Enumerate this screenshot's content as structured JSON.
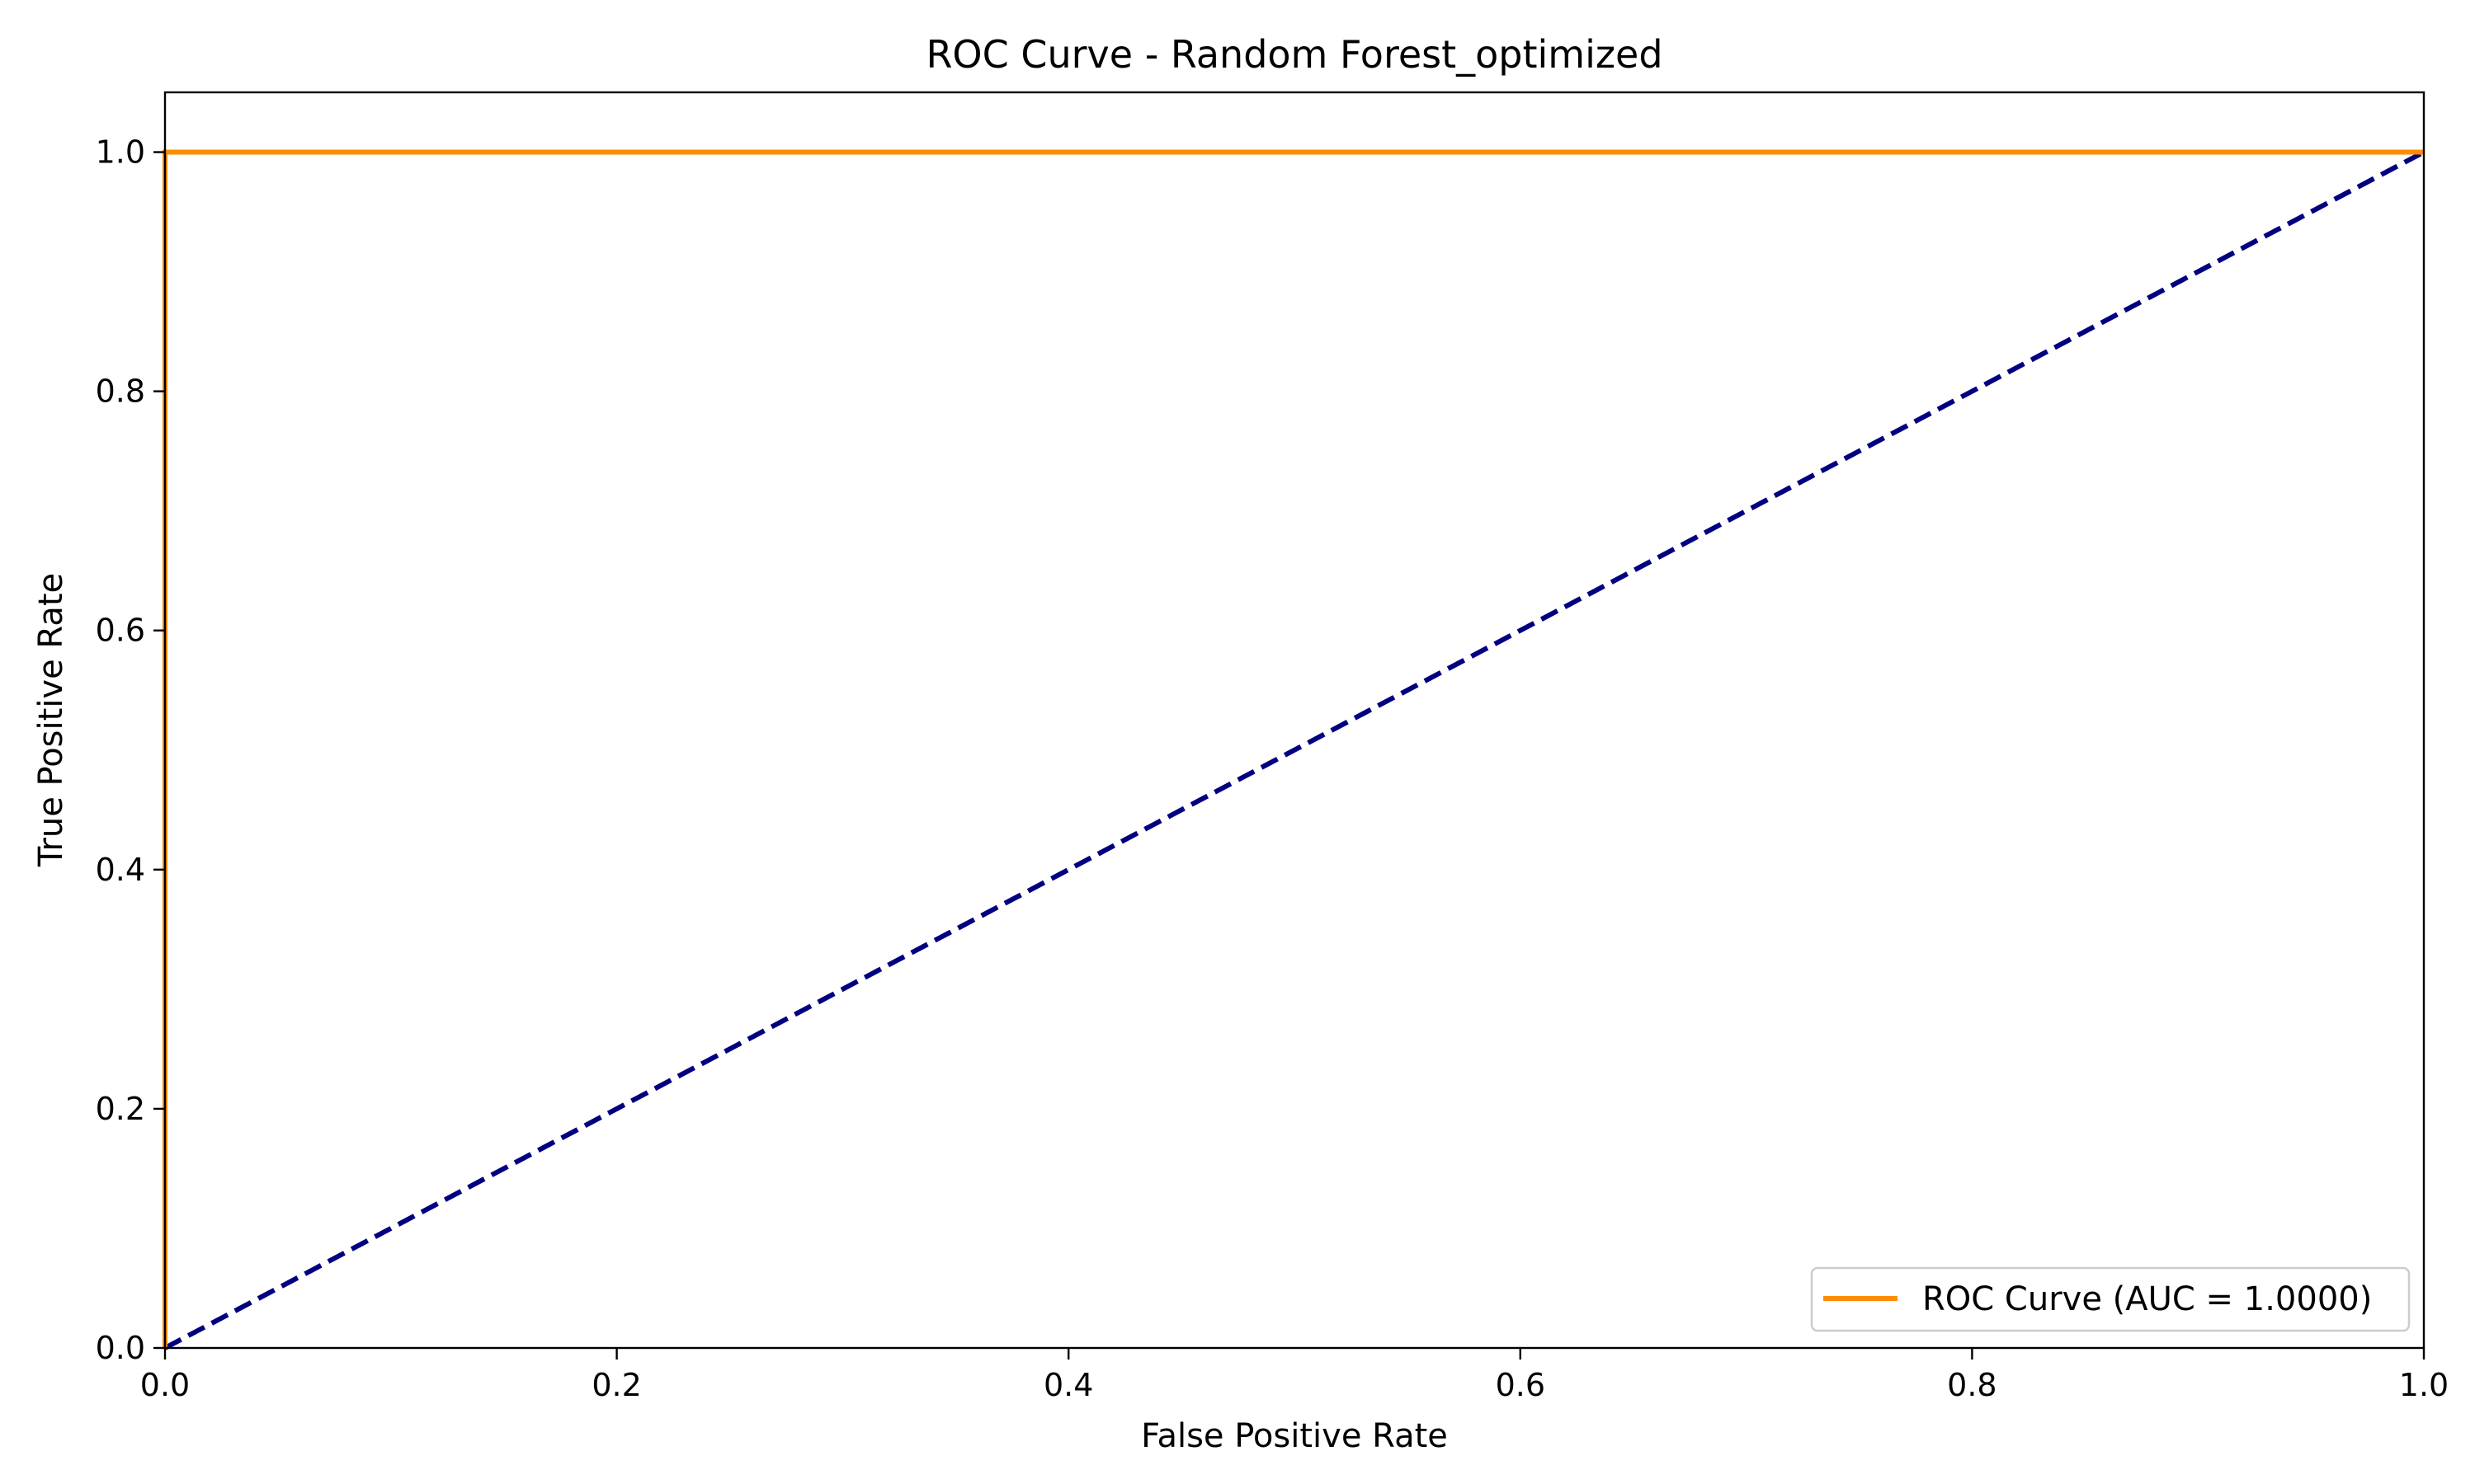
{
  "chart_data": {
    "type": "line",
    "title": "ROC Curve - Random Forest_optimized",
    "xlabel": "False Positive Rate",
    "ylabel": "True Positive Rate",
    "xlim": [
      0.0,
      1.0
    ],
    "ylim": [
      0.0,
      1.05
    ],
    "xticks": [
      0.0,
      0.2,
      0.4,
      0.6,
      0.8,
      1.0
    ],
    "yticks": [
      0.0,
      0.2,
      0.4,
      0.6,
      0.8,
      1.0
    ],
    "xtick_labels": [
      "0.0",
      "0.2",
      "0.4",
      "0.6",
      "0.8",
      "1.0"
    ],
    "ytick_labels": [
      "0.0",
      "0.2",
      "0.4",
      "0.6",
      "0.8",
      "1.0"
    ],
    "grid": false,
    "legend": {
      "position": "lower-right"
    },
    "series": [
      {
        "name": "ROC Curve (AUC = 1.0000)",
        "color": "#ff8c00",
        "style": "solid",
        "x": [
          0.0,
          0.0,
          1.0
        ],
        "y": [
          0.0,
          1.0,
          1.0
        ]
      },
      {
        "color": "#000080",
        "style": "dashed",
        "x": [
          0.0,
          1.0
        ],
        "y": [
          0.0,
          1.0
        ]
      }
    ]
  }
}
